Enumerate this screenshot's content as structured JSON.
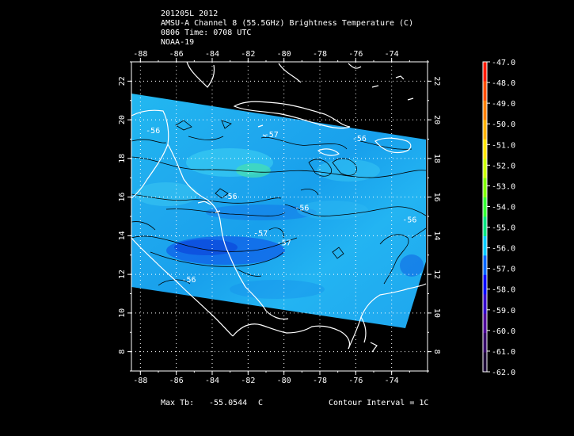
{
  "header": {
    "line1": "201205L 2012",
    "line2": "AMSU-A Channel 8 (55.5GHz) Brightness Temperature (C)",
    "line3": "0806 Time: 0708 UTC",
    "line4": "NOAA-19"
  },
  "footer": {
    "max_label": "Max Tb:",
    "max_value": "-55.0544",
    "max_unit": "C",
    "contour_label": "Contour Interval = 1C"
  },
  "map": {
    "lon_range": [
      -88.5,
      -72
    ],
    "lat_range": [
      7,
      23
    ],
    "lon_ticks": [
      "-88",
      "-86",
      "-84",
      "-82",
      "-80",
      "-78",
      "-76",
      "-74"
    ],
    "lat_ticks": [
      "8",
      "10",
      "12",
      "14",
      "16",
      "18",
      "20",
      "22"
    ],
    "contour_labels": [
      "-56",
      "-57",
      "-56",
      "-56",
      "-57",
      "-57",
      "-56",
      "-56",
      "-56"
    ]
  },
  "colorbar": {
    "labels": [
      "-47.0",
      "-48.0",
      "-49.0",
      "-50.0",
      "-51.0",
      "-52.0",
      "-53.0",
      "-54.0",
      "-55.0",
      "-56.0",
      "-57.0",
      "-58.0",
      "-59.0",
      "-60.0",
      "-61.0",
      "-62.0"
    ],
    "colors": [
      "#ff1a00",
      "#ff4d00",
      "#ff8000",
      "#ffb300",
      "#ffe600",
      "#ccff00",
      "#80ff00",
      "#33ff33",
      "#00e680",
      "#00ccff",
      "#0066ff",
      "#0000ff",
      "#3300cc",
      "#4d0099",
      "#330066",
      "#1a0033"
    ]
  }
}
